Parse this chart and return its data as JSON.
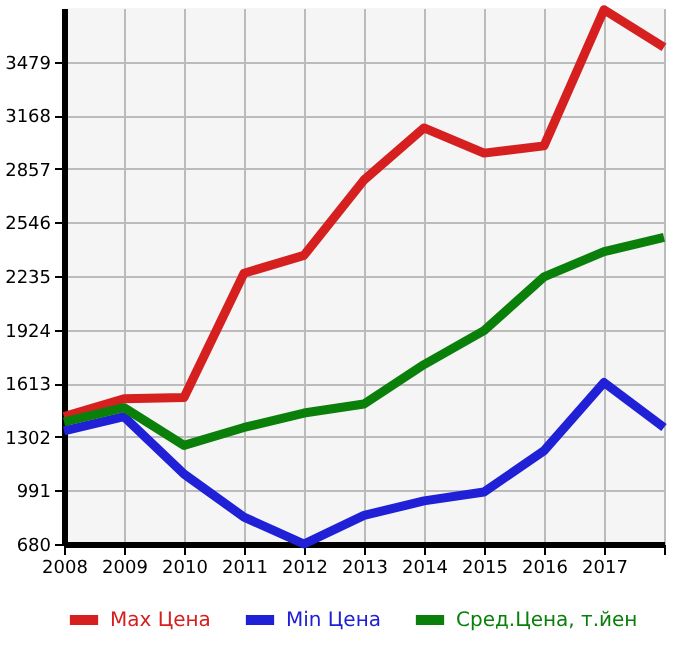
{
  "chart_data": {
    "type": "line",
    "categories": [
      "2008",
      "2009",
      "2010",
      "2011",
      "2012",
      "2013",
      "2014",
      "2015",
      "2016",
      "2017",
      null
    ],
    "series": [
      {
        "name": "Max Цена",
        "color": "#d62020",
        "values": [
          1419,
          1523,
          1530,
          2251,
          2355,
          2792,
          3094,
          2948,
          2990,
          3780,
          3562
        ]
      },
      {
        "name": "Min Цена",
        "color": "#2020d6",
        "values": [
          1336,
          1419,
          1086,
          836,
          680,
          846,
          930,
          982,
          1221,
          1617,
          1356
        ]
      },
      {
        "name": "Сред.Цена, т.йен",
        "color": "#0a800a",
        "values": [
          1388,
          1471,
          1252,
          1356,
          1440,
          1492,
          1721,
          1918,
          2230,
          2376,
          2459
        ]
      }
    ],
    "ylim": [
      680,
      3790
    ],
    "yticks": [
      680,
      991,
      1302,
      1613,
      1924,
      2235,
      2546,
      2857,
      3168,
      3479
    ],
    "grid": true,
    "legend": "bottom",
    "marker": "none",
    "line_style": "solid"
  }
}
